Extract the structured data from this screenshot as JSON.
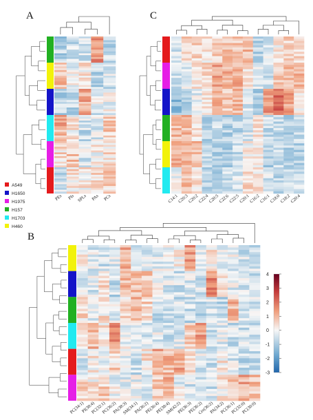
{
  "legend": [
    {
      "name": "A549",
      "color": "#e41a1c"
    },
    {
      "name": "H1650",
      "color": "#1414c8"
    },
    {
      "name": "H1975",
      "color": "#e61ee6"
    },
    {
      "name": "H157",
      "color": "#22b022"
    },
    {
      "name": "H1703",
      "color": "#22eaf0"
    },
    {
      "name": "H460",
      "color": "#f2f20a"
    }
  ],
  "colorscale": {
    "low": "#2166ac",
    "mid": "#f7f7f7",
    "high": "#67001f"
  },
  "chart_data": [
    {
      "type": "heatmap",
      "panel": "A",
      "columns": [
        "PEs",
        "PIs",
        "SPLs",
        "PAs",
        "PCs"
      ],
      "row_groups": [
        "H157",
        "H460",
        "H1650",
        "H1703",
        "H1975",
        "A549"
      ]
    },
    {
      "type": "heatmap",
      "panel": "C",
      "columns": [
        "C14:1",
        "C20:3",
        "C20:2",
        "C22:4",
        "C20:5",
        "C22:6",
        "C22:5",
        "C20:1",
        "C16:2",
        "C16:1",
        "C18:0",
        "C18:2",
        "C20:4"
      ],
      "row_groups": [
        "A549",
        "H1975",
        "H1650",
        "H157",
        "H460",
        "H1703"
      ]
    },
    {
      "type": "heatmap",
      "panel": "B",
      "columns": [
        "PC(34:1)",
        "PI(38:4)",
        "PC(32:1)",
        "PC(36:2)",
        "PA(38:3)",
        "SM(34:1)",
        "PA(36:2)",
        "PE(36:4)",
        "PE(38:4)",
        "SM(42:2)",
        "PE(36:3)",
        "PE(36:2)",
        "Cer(36:2)",
        "PA(34:2)",
        "PC(36:1)",
        "PC(32:0)",
        "PC(30:0)"
      ],
      "row_groups": [
        "H460",
        "H1650",
        "H157",
        "H1703",
        "A549",
        "H1975"
      ],
      "colorbar": {
        "min": -3,
        "max": 4,
        "ticks": [
          4,
          3,
          2,
          1,
          0,
          -1,
          -2,
          -3
        ]
      }
    }
  ]
}
